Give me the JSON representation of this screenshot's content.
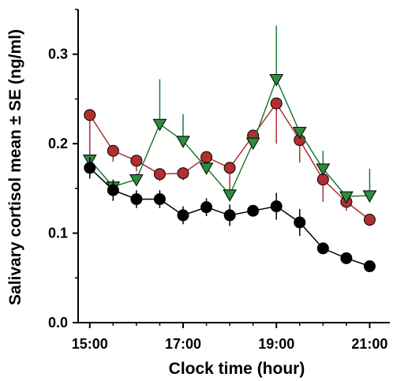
{
  "chart_data": {
    "type": "line",
    "title": "",
    "xlabel": "Clock time (hour)",
    "ylabel": "Salivary cortisol mean ± SE (ng/ml)",
    "x_ticks": [
      {
        "value": 15,
        "label": "15:00"
      },
      {
        "value": 17,
        "label": "17:00"
      },
      {
        "value": 19,
        "label": "19:00"
      },
      {
        "value": 21,
        "label": "21:00"
      }
    ],
    "y_ticks": [
      {
        "value": 0.0,
        "label": "0.0"
      },
      {
        "value": 0.1,
        "label": "0.1"
      },
      {
        "value": 0.2,
        "label": "0.2"
      },
      {
        "value": 0.3,
        "label": "0.3"
      }
    ],
    "xlim": [
      14.75,
      21.5
    ],
    "ylim": [
      0,
      0.35
    ],
    "grid": false,
    "legend": "none",
    "x": [
      15,
      15.5,
      16,
      16.5,
      17,
      17.5,
      18,
      18.5,
      19,
      19.5,
      20,
      20.5,
      21
    ],
    "series": [
      {
        "marker": "circle",
        "fill": "#000000",
        "line_color": "#000000",
        "error_direction": "both",
        "values": [
          0.173,
          0.148,
          0.138,
          0.138,
          0.12,
          0.129,
          0.12,
          0.125,
          0.13,
          0.112,
          0.083,
          0.072,
          0.063
        ],
        "errors": [
          0.012,
          0.012,
          0.01,
          0.01,
          0.01,
          0.01,
          0.012,
          0.006,
          0.015,
          0.015,
          0.005,
          0.005,
          0.004
        ]
      },
      {
        "marker": "circle",
        "fill": "#b03030",
        "line_color": "#b03030",
        "error_direction": "down",
        "values": [
          0.232,
          0.192,
          0.181,
          0.166,
          0.167,
          0.185,
          0.173,
          0.209,
          0.245,
          0.204,
          0.16,
          0.135,
          0.115
        ],
        "errors": [
          0.052,
          0.012,
          0.012,
          0.008,
          0.008,
          0.01,
          0.025,
          0.006,
          0.045,
          0.025,
          0.025,
          0.01,
          0.007
        ]
      },
      {
        "marker": "triangle-down",
        "fill": "#2e8b3e",
        "line_color": "#1f7a35",
        "error_direction": "up",
        "values": [
          0.182,
          0.152,
          0.16,
          0.222,
          0.203,
          0.173,
          0.143,
          0.201,
          0.272,
          0.213,
          0.172,
          0.141,
          0.142
        ],
        "errors": [
          0.005,
          0.005,
          0.007,
          0.05,
          0.03,
          0.005,
          0.005,
          0.005,
          0.06,
          0.005,
          0.02,
          0.005,
          0.03
        ]
      }
    ]
  }
}
